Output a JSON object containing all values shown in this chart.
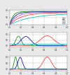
{
  "fig_width": 1.0,
  "fig_height": 1.06,
  "dpi": 100,
  "background": "#e8e8e8",
  "subplot_bg": "#ffffff",
  "top_plot": {
    "lines": [
      {
        "color": "#008800",
        "lw": 0.6
      },
      {
        "color": "#0000cc",
        "lw": 0.6
      },
      {
        "color": "#cc44aa",
        "lw": 0.6
      },
      {
        "color": "#ff3333",
        "lw": 0.6
      },
      {
        "color": "#00bbbb",
        "lw": 0.6
      }
    ],
    "ylim": [
      0,
      1.05
    ],
    "xlim": [
      0,
      1.0
    ]
  },
  "mid_plot": {
    "lines": [
      {
        "color": "#008800",
        "lw": 0.6
      },
      {
        "color": "#0000cc",
        "lw": 0.6
      },
      {
        "color": "#ff3333",
        "lw": 0.6
      },
      {
        "color": "#00bbbb",
        "lw": 0.6
      }
    ],
    "ylim": [
      -0.15,
      1.15
    ],
    "xlim": [
      0,
      1.0
    ]
  },
  "bot_plot": {
    "lines": [
      {
        "color": "#008800",
        "lw": 0.6
      },
      {
        "color": "#0000cc",
        "lw": 0.6
      },
      {
        "color": "#ff3333",
        "lw": 0.6
      },
      {
        "color": "#00bbbb",
        "lw": 0.6
      }
    ],
    "ylim": [
      -0.1,
      1.1
    ],
    "xlim": [
      0,
      1.0
    ]
  },
  "grid_color": "#aaaaaa",
  "tick_color": "#333333",
  "legend_colors": [
    "#008800",
    "#0000cc",
    "#cc44aa",
    "#ff3333",
    "#00bbbb"
  ],
  "legend_labels": [
    "2.5",
    "5",
    "10",
    "20",
    "47"
  ]
}
